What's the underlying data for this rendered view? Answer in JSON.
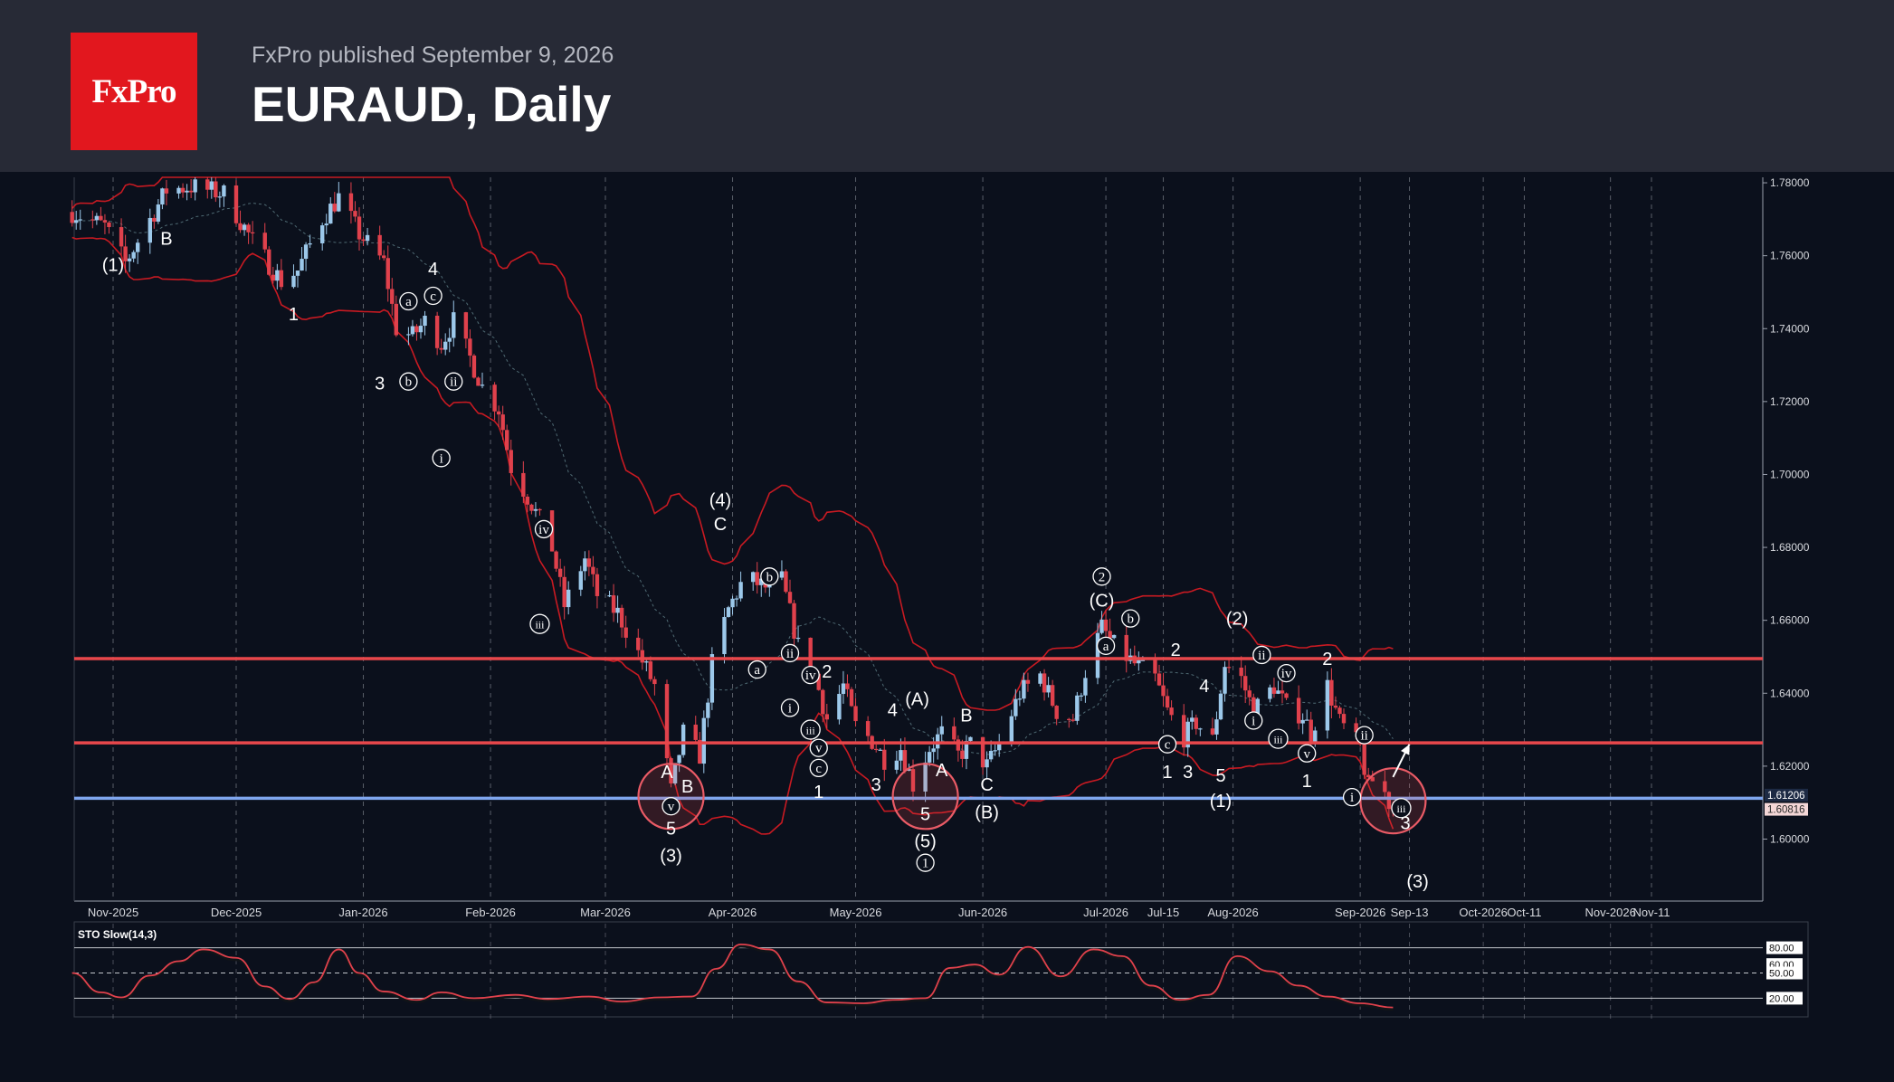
{
  "header": {
    "logo_text": "FxPro",
    "publisher_line": "FxPro published September 9, 2026",
    "title": "EURAUD, Daily"
  },
  "colors": {
    "background": "#0b101c",
    "header_bg": "#272a36",
    "logo_bg": "#e2171e",
    "bull_candle": "#9cc8ea",
    "bear_candle": "#e0414c",
    "bands": "#c81a22",
    "resistance_line": "#e8474b",
    "support_line": "#7fa6ee",
    "stochastic": "#e0414c"
  },
  "chart_data": {
    "type": "candlestick",
    "symbol": "EURAUD",
    "timeframe": "Daily",
    "ylim": [
      1.583,
      1.7815
    ],
    "y_ticks": [
      "1.78000",
      "1.76000",
      "1.74000",
      "1.72000",
      "1.70000",
      "1.68000",
      "1.66000",
      "1.64000",
      "1.62000",
      "1.60000"
    ],
    "x_ticks": [
      {
        "date": "2025-11-01",
        "label": "Nov-2025"
      },
      {
        "date": "2025-12-01",
        "label": "Dec-2025"
      },
      {
        "date": "2026-01-01",
        "label": "Jan-2026"
      },
      {
        "date": "2026-02-01",
        "label": "Feb-2026"
      },
      {
        "date": "2026-03-01",
        "label": "Mar-2026"
      },
      {
        "date": "2026-04-01",
        "label": "Apr-2026"
      },
      {
        "date": "2026-05-01",
        "label": "May-2026"
      },
      {
        "date": "2026-06-01",
        "label": "Jun-2026"
      },
      {
        "date": "2026-07-01",
        "label": "Jul-2026"
      },
      {
        "date": "2026-07-15",
        "label": "Jul-15"
      },
      {
        "date": "2026-08-01",
        "label": "Aug-2026"
      },
      {
        "date": "2026-09-01",
        "label": "Sep-2026"
      },
      {
        "date": "2026-09-13",
        "label": "Sep-13"
      },
      {
        "date": "2026-10-01",
        "label": "Oct-2026"
      },
      {
        "date": "2026-10-11",
        "label": "Oct-11"
      },
      {
        "date": "2026-11-01",
        "label": "Nov-2026"
      },
      {
        "date": "2026-11-11",
        "label": "Nov-11"
      }
    ],
    "close_path": [
      [
        "2025-10-22",
        1.772
      ],
      [
        "2025-10-30",
        1.768
      ],
      [
        "2025-11-04",
        1.758
      ],
      [
        "2025-11-10",
        1.77
      ],
      [
        "2025-11-14",
        1.778
      ],
      [
        "2025-11-20",
        1.779
      ],
      [
        "2025-11-28",
        1.777
      ],
      [
        "2025-12-05",
        1.764
      ],
      [
        "2025-12-12",
        1.753
      ],
      [
        "2025-12-16",
        1.756
      ],
      [
        "2025-12-22",
        1.77
      ],
      [
        "2025-12-26",
        1.776
      ],
      [
        "2025-12-31",
        1.766
      ],
      [
        "2026-01-06",
        1.758
      ],
      [
        "2026-01-09",
        1.74
      ],
      [
        "2026-01-13",
        1.738
      ],
      [
        "2026-01-16",
        1.742
      ],
      [
        "2026-01-20",
        1.736
      ],
      [
        "2026-01-23",
        1.742
      ],
      [
        "2026-01-27",
        1.732
      ],
      [
        "2026-01-30",
        1.724
      ],
      [
        "2026-02-03",
        1.718
      ],
      [
        "2026-02-06",
        1.702
      ],
      [
        "2026-02-11",
        1.692
      ],
      [
        "2026-02-16",
        1.68
      ],
      [
        "2026-02-19",
        1.664
      ],
      [
        "2026-02-24",
        1.677
      ],
      [
        "2026-02-27",
        1.667
      ],
      [
        "2026-03-04",
        1.662
      ],
      [
        "2026-03-09",
        1.651
      ],
      [
        "2026-03-13",
        1.642
      ],
      [
        "2026-03-17",
        1.613
      ],
      [
        "2026-03-20",
        1.629
      ],
      [
        "2026-03-24",
        1.623
      ],
      [
        "2026-03-27",
        1.648
      ],
      [
        "2026-03-31",
        1.663
      ],
      [
        "2026-04-04",
        1.672
      ],
      [
        "2026-04-09",
        1.669
      ],
      [
        "2026-04-13",
        1.671
      ],
      [
        "2026-04-17",
        1.653
      ],
      [
        "2026-04-21",
        1.645
      ],
      [
        "2026-04-24",
        1.633
      ],
      [
        "2026-04-28",
        1.642
      ],
      [
        "2026-05-01",
        1.631
      ],
      [
        "2026-05-05",
        1.627
      ],
      [
        "2026-05-08",
        1.622
      ],
      [
        "2026-05-12",
        1.625
      ],
      [
        "2026-05-15",
        1.615
      ],
      [
        "2026-05-19",
        1.625
      ],
      [
        "2026-05-22",
        1.629
      ],
      [
        "2026-05-26",
        1.623
      ],
      [
        "2026-05-29",
        1.626
      ],
      [
        "2026-06-02",
        1.62
      ],
      [
        "2026-06-05",
        1.626
      ],
      [
        "2026-06-10",
        1.64
      ],
      [
        "2026-06-15",
        1.645
      ],
      [
        "2026-06-19",
        1.635
      ],
      [
        "2026-06-23",
        1.633
      ],
      [
        "2026-06-26",
        1.646
      ],
      [
        "2026-06-30",
        1.658
      ],
      [
        "2026-07-03",
        1.653
      ],
      [
        "2026-07-08",
        1.648
      ],
      [
        "2026-07-13",
        1.644
      ],
      [
        "2026-07-16",
        1.635
      ],
      [
        "2026-07-20",
        1.628
      ],
      [
        "2026-07-23",
        1.632
      ],
      [
        "2026-07-27",
        1.627
      ],
      [
        "2026-07-30",
        1.648
      ],
      [
        "2026-08-03",
        1.644
      ],
      [
        "2026-08-06",
        1.635
      ],
      [
        "2026-08-11",
        1.642
      ],
      [
        "2026-08-14",
        1.636
      ],
      [
        "2026-08-18",
        1.634
      ],
      [
        "2026-08-20",
        1.629
      ],
      [
        "2026-08-24",
        1.642
      ],
      [
        "2026-08-27",
        1.632
      ],
      [
        "2026-09-01",
        1.625
      ],
      [
        "2026-09-03",
        1.614
      ],
      [
        "2026-09-05",
        1.618
      ],
      [
        "2026-09-08",
        1.61
      ],
      [
        "2026-09-09",
        1.6082
      ]
    ],
    "horizontal_levels": [
      {
        "price": 1.6495,
        "kind": "resistance"
      },
      {
        "price": 1.6264,
        "kind": "resistance"
      },
      {
        "price": 1.6112,
        "kind": "support"
      }
    ],
    "price_labels": [
      {
        "price": 1.61206,
        "text": "1.61206"
      },
      {
        "price": 1.60816,
        "text": "1.60816"
      }
    ],
    "circles": [
      {
        "date": "2026-03-17",
        "price": 1.6117
      },
      {
        "date": "2026-05-18",
        "price": 1.6117
      },
      {
        "date": "2026-09-09",
        "price": 1.6105
      }
    ],
    "arrow": {
      "from": [
        "2026-09-09",
        1.617
      ],
      "to": [
        "2026-09-13",
        1.626
      ]
    },
    "wave_labels": [
      {
        "d": "2025-11-01",
        "p": 1.7575,
        "t": "(1)"
      },
      {
        "d": "2025-11-14",
        "p": 1.7648,
        "t": "B"
      },
      {
        "d": "2025-12-15",
        "p": 1.744,
        "t": "1"
      },
      {
        "d": "2026-01-05",
        "p": 1.725,
        "t": "3"
      },
      {
        "d": "2026-01-12",
        "p": 1.7255,
        "t": "b",
        "c": 1
      },
      {
        "d": "2026-01-12",
        "p": 1.7475,
        "t": "a",
        "c": 1
      },
      {
        "d": "2026-01-18",
        "p": 1.749,
        "t": "c",
        "c": 1
      },
      {
        "d": "2026-01-18",
        "p": 1.7565,
        "t": "4"
      },
      {
        "d": "2026-01-23",
        "p": 1.7255,
        "t": "ii",
        "c": 1
      },
      {
        "d": "2026-01-20",
        "p": 1.7045,
        "t": "i",
        "c": 1
      },
      {
        "d": "2026-02-14",
        "p": 1.685,
        "t": "iv",
        "c": 1
      },
      {
        "d": "2026-02-13",
        "p": 1.659,
        "t": "iii",
        "c": 1
      },
      {
        "d": "2026-03-16",
        "p": 1.6185,
        "t": "A"
      },
      {
        "d": "2026-03-21",
        "p": 1.6145,
        "t": "B"
      },
      {
        "d": "2026-03-17",
        "p": 1.609,
        "t": "v",
        "c": 1
      },
      {
        "d": "2026-03-17",
        "p": 1.603,
        "t": "5"
      },
      {
        "d": "2026-03-17",
        "p": 1.5955,
        "t": "(3)"
      },
      {
        "d": "2026-03-29",
        "p": 1.693,
        "t": "(4)"
      },
      {
        "d": "2026-03-29",
        "p": 1.6865,
        "t": "C"
      },
      {
        "d": "2026-04-10",
        "p": 1.672,
        "t": "b",
        "c": 1
      },
      {
        "d": "2026-04-07",
        "p": 1.6465,
        "t": "a",
        "c": 1
      },
      {
        "d": "2026-04-15",
        "p": 1.651,
        "t": "ii",
        "c": 1
      },
      {
        "d": "2026-04-20",
        "p": 1.645,
        "t": "iv",
        "c": 1
      },
      {
        "d": "2026-04-24",
        "p": 1.646,
        "t": "2"
      },
      {
        "d": "2026-04-15",
        "p": 1.636,
        "t": "i",
        "c": 1
      },
      {
        "d": "2026-04-20",
        "p": 1.63,
        "t": "iii",
        "c": 1
      },
      {
        "d": "2026-04-22",
        "p": 1.625,
        "t": "v",
        "c": 1
      },
      {
        "d": "2026-04-22",
        "p": 1.6195,
        "t": "c",
        "c": 1
      },
      {
        "d": "2026-04-22",
        "p": 1.613,
        "t": "1"
      },
      {
        "d": "2026-05-06",
        "p": 1.615,
        "t": "3"
      },
      {
        "d": "2026-05-10",
        "p": 1.6355,
        "t": "4"
      },
      {
        "d": "2026-05-16",
        "p": 1.6385,
        "t": "(A)"
      },
      {
        "d": "2026-05-22",
        "p": 1.619,
        "t": "A"
      },
      {
        "d": "2026-05-28",
        "p": 1.634,
        "t": "B"
      },
      {
        "d": "2026-06-02",
        "p": 1.615,
        "t": "C"
      },
      {
        "d": "2026-06-02",
        "p": 1.6075,
        "t": "(B)"
      },
      {
        "d": "2026-05-18",
        "p": 1.607,
        "t": "5"
      },
      {
        "d": "2026-05-18",
        "p": 1.5995,
        "t": "(5)"
      },
      {
        "d": "2026-05-18",
        "p": 1.5935,
        "t": "1",
        "c": 1
      },
      {
        "d": "2026-06-30",
        "p": 1.672,
        "t": "2",
        "c": 1
      },
      {
        "d": "2026-06-30",
        "p": 1.6655,
        "t": "(C)"
      },
      {
        "d": "2026-07-07",
        "p": 1.6605,
        "t": "b",
        "c": 1
      },
      {
        "d": "2026-07-01",
        "p": 1.653,
        "t": "a",
        "c": 1
      },
      {
        "d": "2026-07-18",
        "p": 1.652,
        "t": "2"
      },
      {
        "d": "2026-07-16",
        "p": 1.626,
        "t": "c",
        "c": 1
      },
      {
        "d": "2026-07-16",
        "p": 1.6185,
        "t": "1"
      },
      {
        "d": "2026-07-21",
        "p": 1.6185,
        "t": "3"
      },
      {
        "d": "2026-07-25",
        "p": 1.642,
        "t": "4"
      },
      {
        "d": "2026-07-29",
        "p": 1.6175,
        "t": "5"
      },
      {
        "d": "2026-07-29",
        "p": 1.6105,
        "t": "(1)"
      },
      {
        "d": "2026-08-02",
        "p": 1.6605,
        "t": "(2)"
      },
      {
        "d": "2026-08-08",
        "p": 1.6505,
        "t": "ii",
        "c": 1
      },
      {
        "d": "2026-08-14",
        "p": 1.6455,
        "t": "iv",
        "c": 1
      },
      {
        "d": "2026-08-06",
        "p": 1.6325,
        "t": "i",
        "c": 1
      },
      {
        "d": "2026-08-12",
        "p": 1.6275,
        "t": "iii",
        "c": 1
      },
      {
        "d": "2026-08-19",
        "p": 1.6235,
        "t": "v",
        "c": 1
      },
      {
        "d": "2026-08-19",
        "p": 1.616,
        "t": "1"
      },
      {
        "d": "2026-08-24",
        "p": 1.6495,
        "t": "2"
      },
      {
        "d": "2026-09-02",
        "p": 1.6285,
        "t": "ii",
        "c": 1
      },
      {
        "d": "2026-08-30",
        "p": 1.6115,
        "t": "i",
        "c": 1
      },
      {
        "d": "2026-09-11",
        "p": 1.6085,
        "t": "iii",
        "c": 1
      },
      {
        "d": "2026-09-12",
        "p": 1.6045,
        "t": "3"
      },
      {
        "d": "2026-09-15",
        "p": 1.5885,
        "t": "(3)"
      }
    ],
    "stochastic": {
      "label": "STO Slow(14,3)",
      "levels": [
        {
          "v": 80,
          "text": "80.00"
        },
        {
          "v": 60,
          "text": "60.00"
        },
        {
          "v": 50,
          "text": "50.00"
        },
        {
          "v": 20,
          "text": "20.00"
        }
      ],
      "values": [
        [
          "2025-10-22",
          50
        ],
        [
          "2025-10-29",
          27
        ],
        [
          "2025-11-03",
          21
        ],
        [
          "2025-11-10",
          47
        ],
        [
          "2025-11-17",
          64
        ],
        [
          "2025-11-23",
          78
        ],
        [
          "2025-12-01",
          68
        ],
        [
          "2025-12-08",
          34
        ],
        [
          "2025-12-14",
          19
        ],
        [
          "2025-12-20",
          39
        ],
        [
          "2025-12-26",
          78
        ],
        [
          "2025-12-31",
          50
        ],
        [
          "2026-01-06",
          28
        ],
        [
          "2026-01-14",
          18
        ],
        [
          "2026-01-20",
          27
        ],
        [
          "2026-01-28",
          20
        ],
        [
          "2026-02-07",
          24
        ],
        [
          "2026-02-15",
          19
        ],
        [
          "2026-02-25",
          22
        ],
        [
          "2026-03-05",
          16
        ],
        [
          "2026-03-14",
          21
        ],
        [
          "2026-03-22",
          22
        ],
        [
          "2026-03-28",
          55
        ],
        [
          "2026-04-03",
          84
        ],
        [
          "2026-04-10",
          78
        ],
        [
          "2026-04-17",
          40
        ],
        [
          "2026-04-24",
          15
        ],
        [
          "2026-05-03",
          14
        ],
        [
          "2026-05-10",
          18
        ],
        [
          "2026-05-18",
          20
        ],
        [
          "2026-05-24",
          56
        ],
        [
          "2026-05-30",
          60
        ],
        [
          "2026-06-05",
          48
        ],
        [
          "2026-06-12",
          81
        ],
        [
          "2026-06-20",
          46
        ],
        [
          "2026-06-28",
          78
        ],
        [
          "2026-07-05",
          70
        ],
        [
          "2026-07-12",
          35
        ],
        [
          "2026-07-19",
          18
        ],
        [
          "2026-07-26",
          24
        ],
        [
          "2026-08-02",
          70
        ],
        [
          "2026-08-10",
          52
        ],
        [
          "2026-08-17",
          35
        ],
        [
          "2026-08-24",
          22
        ],
        [
          "2026-09-01",
          14
        ],
        [
          "2026-09-09",
          9
        ]
      ]
    }
  }
}
